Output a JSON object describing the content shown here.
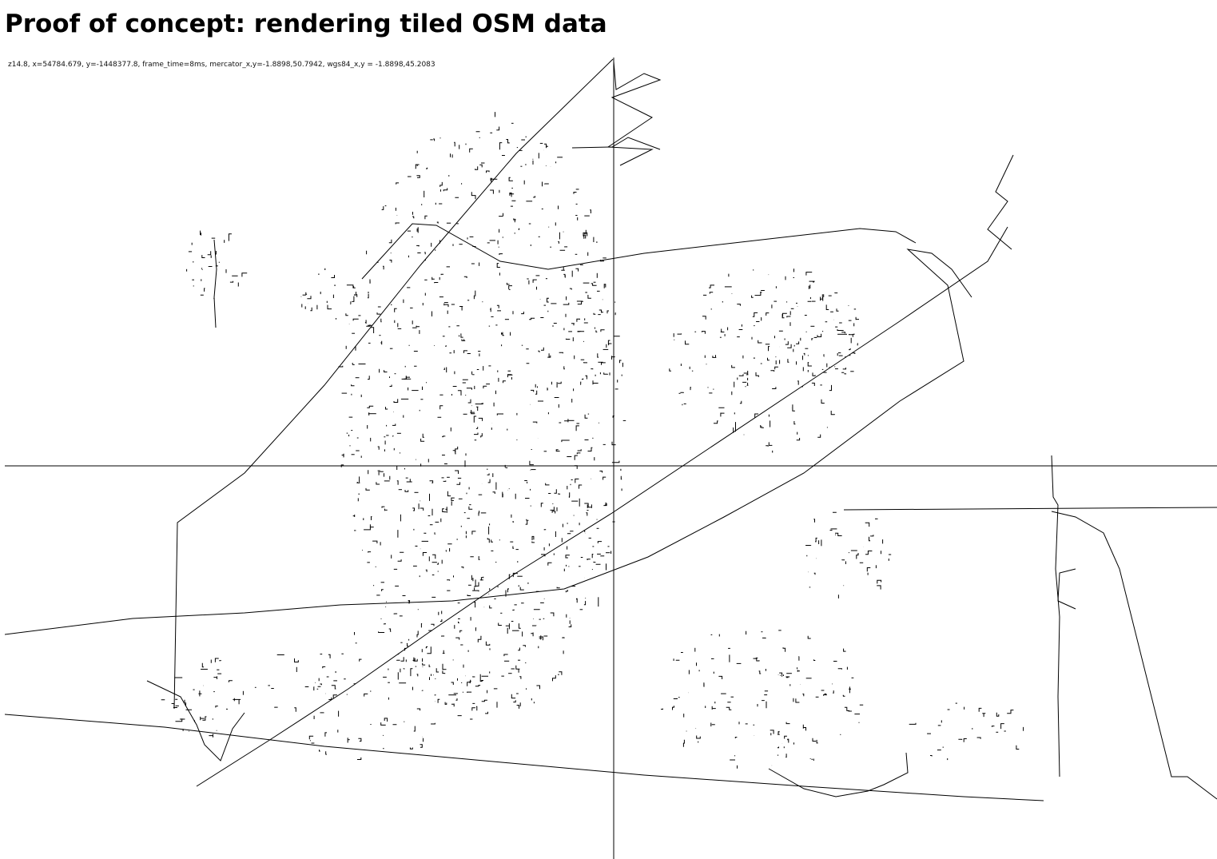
{
  "page": {
    "title": "Proof of concept: rendering tiled OSM data"
  },
  "status": {
    "readout": "z14.8, x=54784.679, y=-1448377.8, frame_time=8ms, mercator_x,y=-1.8898,50.7942, wgs84_x,y = -1.8898,45.2083",
    "zoom": 14.8,
    "x": 54784.679,
    "y": -1448377.8,
    "frame_time_ms": 8,
    "mercator": [
      -1.8898,
      50.7942
    ],
    "wgs84": [
      -1.8898,
      45.2083
    ]
  },
  "map": {
    "stroke_color": "#000000",
    "background_color": "#ffffff",
    "crosshair": true
  }
}
